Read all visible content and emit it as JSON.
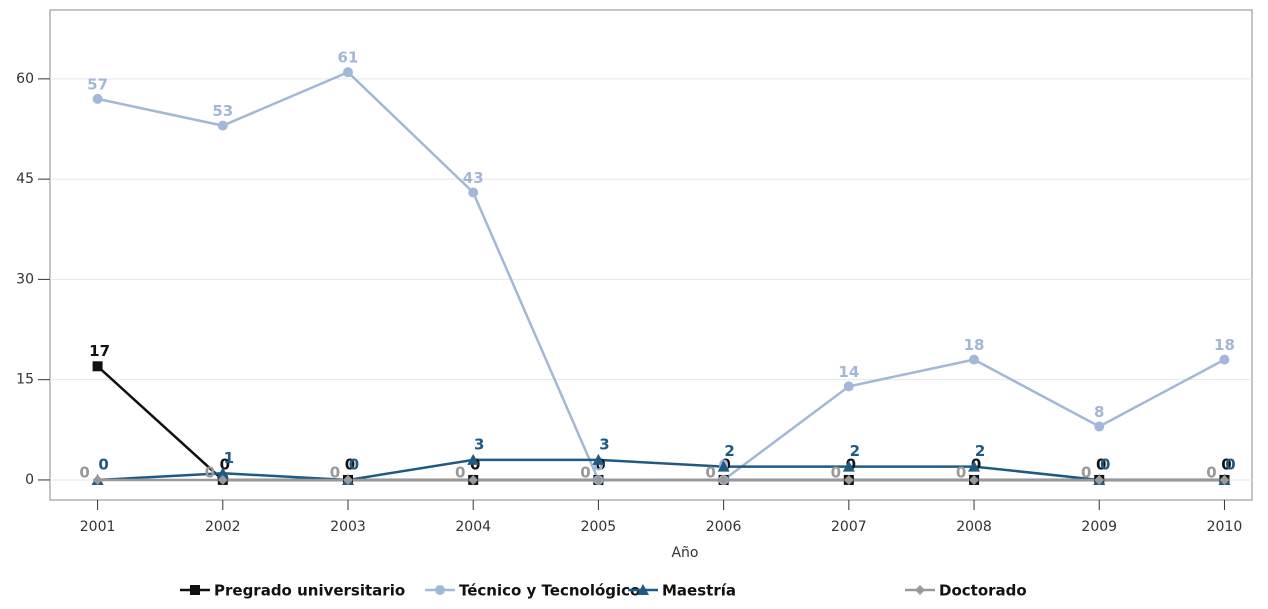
{
  "chart_data": {
    "type": "line",
    "x_label": "Año",
    "x": [
      2001,
      2002,
      2003,
      2004,
      2005,
      2006,
      2007,
      2008,
      2009,
      2010
    ],
    "xlim": [
      2000.62,
      2010.22
    ],
    "xticks": [
      2001,
      2002,
      2003,
      2004,
      2005,
      2006,
      2007,
      2008,
      2009,
      2010
    ],
    "ylim": [
      -3,
      70.3
    ],
    "yticks": [
      0,
      15,
      30,
      45,
      60
    ],
    "grid": true,
    "legend": "bottom",
    "series": [
      {
        "name": "Pregrado universitario",
        "color": "#111111",
        "marker": "square",
        "values": [
          17,
          0,
          0,
          0,
          0,
          0,
          0,
          0,
          0,
          0
        ]
      },
      {
        "name": "Técnico y Tecnológico",
        "color": "#a3b7d6",
        "marker": "circle",
        "values": [
          57,
          53,
          61,
          43,
          0,
          0,
          14,
          18,
          8,
          18
        ]
      },
      {
        "name": "Maestría",
        "color": "#1f5a84",
        "marker": "triangle",
        "values": [
          0,
          1,
          0,
          3,
          3,
          2,
          2,
          2,
          0,
          0
        ]
      },
      {
        "name": "Doctorado",
        "color": "#999999",
        "marker": "diamond",
        "values": [
          0,
          0,
          0,
          0,
          0,
          0,
          0,
          0,
          0,
          0
        ]
      }
    ]
  }
}
